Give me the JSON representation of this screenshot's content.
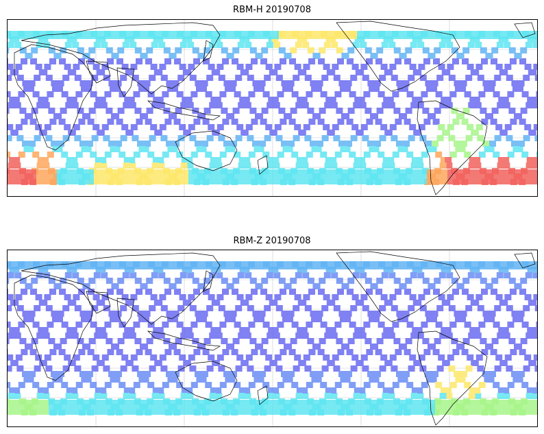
{
  "panels": [
    {
      "title": "RBM-H 20190708",
      "colors": {
        "purple": "#6a6cf0",
        "blue": "#6b8ef5",
        "lightblue": "#62b4f4",
        "cyan": "#5fe6f1",
        "green": "#a8f58a",
        "yellow": "#fde86a",
        "orange": "#fda75e",
        "red": "#f2625e"
      }
    },
    {
      "title": "RBM-Z 20190708",
      "colors": {
        "purple": "#6a6cf0",
        "blue": "#6b8ef5",
        "lightblue": "#62b4f4",
        "cyan": "#5fe6f1",
        "green": "#a8f58a",
        "yellow": "#fde86a"
      }
    }
  ],
  "map": {
    "gridlines": "on",
    "coastline_color": "#000000",
    "gridline_color": "#c8c8c8"
  }
}
